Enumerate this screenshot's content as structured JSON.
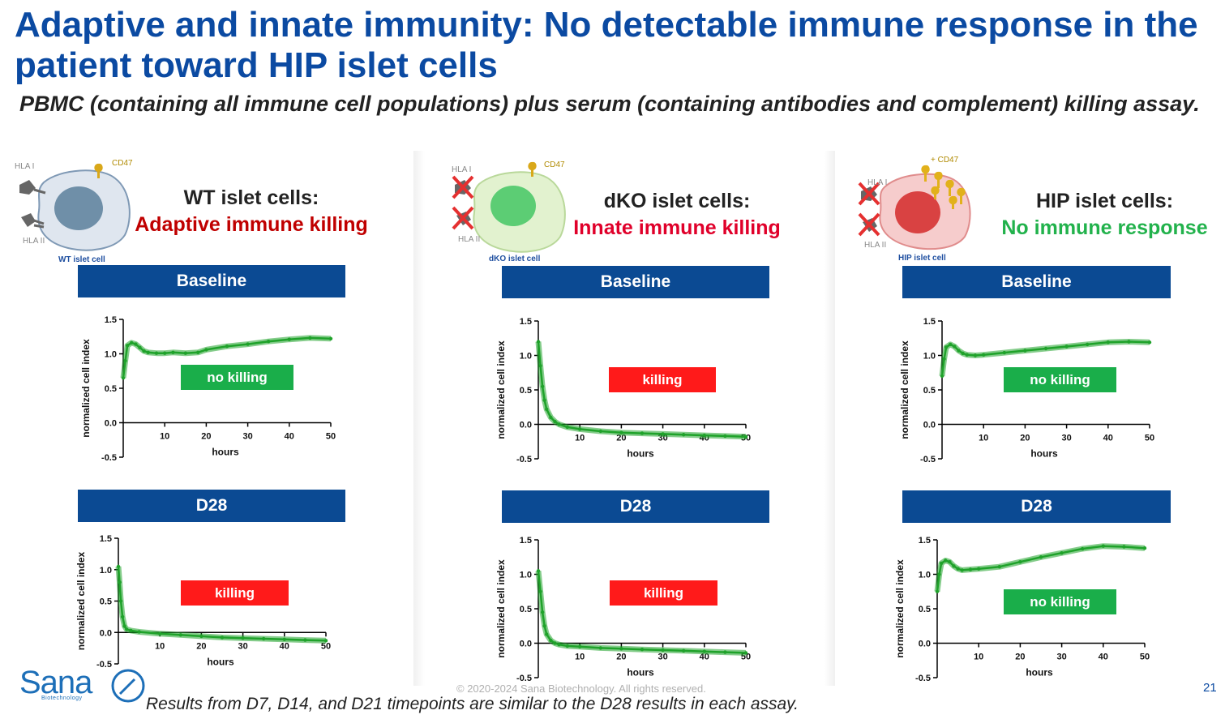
{
  "title": "Adaptive and innate immunity: No detectable immune response in the patient toward HIP islet cells",
  "subtitle": "PBMC (containing all immune cell populations) plus serum (containing antibodies and complement) killing assay.",
  "footer_note": "Results from D7, D14, and D21 timepoints are similar to the D28 results in each assay.",
  "copyright": "© 2020-2024 Sana Biotechnology. All rights reserved.",
  "page_number": "21",
  "logo": {
    "word": "Sana",
    "sub": "Biotechnology"
  },
  "colors": {
    "title": "#0b4aa2",
    "banner": "#0b4a93",
    "curve": "#1fa22a",
    "tag_green": "#1aae4a",
    "tag_red": "#ff1a1a",
    "adaptive": "#c00000",
    "innate": "#e0002a",
    "none": "#22b24c"
  },
  "columns": [
    {
      "cell_label": "WT islet cells:",
      "cell_sublabel": "Adaptive immune killing",
      "diagram": {
        "hla1": "HLA I",
        "hla2": "HLA II",
        "cd47": "CD47",
        "caption": "WT islet cell",
        "body_color": "#dfe6ef",
        "nucleus_color": "#6f8fa8"
      }
    },
    {
      "cell_label": "dKO islet cells:",
      "cell_sublabel": "Innate immune killing",
      "diagram": {
        "hla1": "HLA I",
        "hla2": "HLA II",
        "cd47": "CD47",
        "caption": "dKO islet cell",
        "body_color": "#e2f2cf",
        "nucleus_color": "#5ccd74"
      }
    },
    {
      "cell_label": "HIP islet cells:",
      "cell_sublabel": "No immune response",
      "diagram": {
        "hla1": "HLA I",
        "hla2": "HLA II",
        "cd47": "+ CD47",
        "caption": "HIP islet cell",
        "body_color": "#f6cccc",
        "nucleus_color": "#d94242"
      }
    }
  ],
  "chart_data": [
    {
      "column": "WT islet cells",
      "banner": "Baseline",
      "type": "line",
      "xlabel": "hours",
      "ylabel": "normalized cell index",
      "xlim": [
        0,
        50
      ],
      "ylim": [
        -0.5,
        1.5
      ],
      "xticks": [
        10,
        20,
        30,
        40,
        50
      ],
      "yticks": [
        -0.5,
        0.0,
        0.5,
        1.0,
        1.5
      ],
      "tick_labels_y": [
        "-0.5",
        "0.0",
        "0.5",
        "1.0",
        "1.5"
      ],
      "annotation": "no killing",
      "annotation_color": "green",
      "x": [
        0,
        0.5,
        1,
        2,
        3,
        4,
        5,
        6,
        8,
        10,
        12,
        15,
        18,
        20,
        25,
        30,
        35,
        40,
        45,
        50
      ],
      "y": [
        0.65,
        0.9,
        1.12,
        1.16,
        1.14,
        1.09,
        1.04,
        1.02,
        1.01,
        1.01,
        1.02,
        1.01,
        1.02,
        1.06,
        1.11,
        1.14,
        1.18,
        1.21,
        1.23,
        1.22
      ]
    },
    {
      "column": "dKO islet cells",
      "banner": "Baseline",
      "type": "line",
      "xlabel": "hours",
      "ylabel": "normalized cell index",
      "xlim": [
        0,
        50
      ],
      "ylim": [
        -0.5,
        1.5
      ],
      "xticks": [
        10,
        20,
        30,
        40,
        50
      ],
      "yticks": [
        -0.5,
        0.0,
        0.5,
        1.0,
        1.5
      ],
      "tick_labels_y": [
        "-0.5",
        "0.0",
        "0.5",
        "1.0",
        "1.5"
      ],
      "annotation": "killing",
      "annotation_color": "red",
      "x": [
        0,
        0.5,
        1,
        1.5,
        2,
        3,
        4,
        5,
        7,
        10,
        15,
        20,
        25,
        30,
        35,
        40,
        45,
        50
      ],
      "y": [
        1.2,
        0.85,
        0.55,
        0.35,
        0.22,
        0.1,
        0.04,
        0.0,
        -0.04,
        -0.07,
        -0.1,
        -0.12,
        -0.13,
        -0.14,
        -0.15,
        -0.16,
        -0.17,
        -0.18
      ]
    },
    {
      "column": "HIP islet cells",
      "banner": "Baseline",
      "type": "line",
      "xlabel": "hours",
      "ylabel": "normalized cell index",
      "xlim": [
        0,
        50
      ],
      "ylim": [
        -0.5,
        1.5
      ],
      "xticks": [
        10,
        20,
        30,
        40,
        50
      ],
      "yticks": [
        -0.5,
        0.0,
        0.5,
        1.0,
        1.5
      ],
      "tick_labels_y": [
        "-0.5",
        "0.0",
        "0.5",
        "1.0",
        "1.5"
      ],
      "annotation": "no killing",
      "annotation_color": "green",
      "x": [
        0,
        0.5,
        1,
        2,
        3,
        4,
        5,
        6,
        8,
        10,
        15,
        20,
        25,
        30,
        35,
        40,
        45,
        50
      ],
      "y": [
        0.7,
        0.95,
        1.12,
        1.16,
        1.13,
        1.07,
        1.03,
        1.01,
        1.0,
        1.01,
        1.04,
        1.07,
        1.1,
        1.13,
        1.16,
        1.19,
        1.2,
        1.19
      ]
    },
    {
      "column": "WT islet cells",
      "banner": "D28",
      "type": "line",
      "xlabel": "hours",
      "ylabel": "normalized cell index",
      "xlim": [
        0,
        50
      ],
      "ylim": [
        -0.5,
        1.5
      ],
      "xticks": [
        10,
        20,
        30,
        40,
        50
      ],
      "yticks": [
        -0.5,
        0.0,
        0.5,
        1.0,
        1.5
      ],
      "tick_labels_y": [
        "-0.5",
        "0.0",
        "0.5",
        "1.0",
        "1.5"
      ],
      "annotation": "killing",
      "annotation_color": "red",
      "x": [
        0,
        0.3,
        0.6,
        1,
        1.5,
        2,
        3,
        5,
        10,
        15,
        20,
        25,
        30,
        35,
        40,
        45,
        50
      ],
      "y": [
        1.05,
        0.8,
        0.5,
        0.25,
        0.1,
        0.05,
        0.03,
        0.01,
        -0.02,
        -0.04,
        -0.06,
        -0.08,
        -0.09,
        -0.1,
        -0.11,
        -0.12,
        -0.13
      ]
    },
    {
      "column": "dKO islet cells",
      "banner": "D28",
      "type": "line",
      "xlabel": "hours",
      "ylabel": "normalized cell index",
      "xlim": [
        0,
        50
      ],
      "ylim": [
        -0.5,
        1.5
      ],
      "xticks": [
        10,
        20,
        30,
        40,
        50
      ],
      "yticks": [
        -0.5,
        0.0,
        0.5,
        1.0,
        1.5
      ],
      "tick_labels_y": [
        "-0.5",
        "0.0",
        "0.5",
        "1.0",
        "1.5"
      ],
      "annotation": "killing",
      "annotation_color": "red",
      "x": [
        0,
        0.5,
        1,
        1.5,
        2,
        3,
        4,
        5,
        7,
        10,
        15,
        20,
        25,
        30,
        35,
        40,
        45,
        50
      ],
      "y": [
        1.05,
        0.75,
        0.45,
        0.25,
        0.13,
        0.04,
        0.0,
        -0.02,
        -0.04,
        -0.05,
        -0.07,
        -0.08,
        -0.09,
        -0.1,
        -0.11,
        -0.12,
        -0.13,
        -0.14
      ]
    },
    {
      "column": "HIP islet cells",
      "banner": "D28",
      "type": "line",
      "xlabel": "hours",
      "ylabel": "normalized cell index",
      "xlim": [
        0,
        50
      ],
      "ylim": [
        -0.5,
        1.5
      ],
      "xticks": [
        10,
        20,
        30,
        40,
        50
      ],
      "yticks": [
        -0.5,
        0.0,
        0.5,
        1.0,
        1.5
      ],
      "tick_labels_y": [
        "-0.5",
        "0.0",
        "0.5",
        "1.0",
        "1.5"
      ],
      "annotation": "no killing",
      "annotation_color": "green",
      "x": [
        0,
        0.5,
        1,
        2,
        3,
        4,
        5,
        6,
        8,
        10,
        15,
        20,
        25,
        30,
        35,
        40,
        45,
        50
      ],
      "y": [
        0.75,
        1.0,
        1.16,
        1.2,
        1.18,
        1.12,
        1.08,
        1.06,
        1.07,
        1.08,
        1.11,
        1.18,
        1.25,
        1.31,
        1.37,
        1.41,
        1.4,
        1.38
      ]
    }
  ]
}
